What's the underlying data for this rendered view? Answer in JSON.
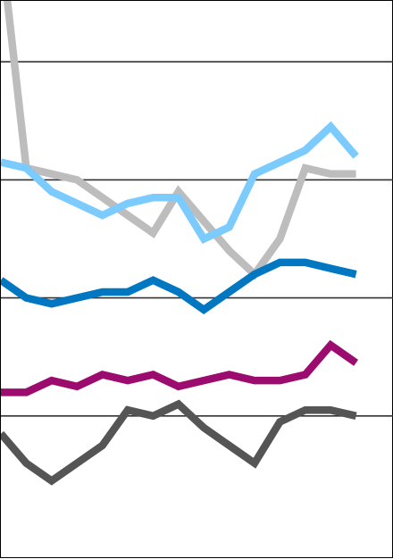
{
  "chart_data": {
    "type": "line",
    "x": [
      1,
      2,
      3,
      4,
      5,
      6,
      7,
      8,
      9,
      10,
      11,
      12,
      13,
      14,
      15
    ],
    "ylim": [
      0,
      100
    ],
    "gridlines_y": [
      20,
      40,
      60,
      80
    ],
    "grid": true,
    "legend": "none",
    "series": [
      {
        "color": "#bdbdbd",
        "values": [
          100,
          62,
          61,
          60,
          57,
          54,
          51,
          58,
          53,
          48,
          44,
          50,
          62,
          61,
          61
        ]
      },
      {
        "color": "#7ccbff",
        "values": [
          63,
          62,
          58,
          56,
          54,
          56,
          57,
          57,
          50,
          52,
          61,
          63,
          65,
          69,
          64
        ]
      },
      {
        "color": "#0077c0",
        "values": [
          43,
          40,
          39,
          40,
          41,
          41,
          43,
          41,
          38,
          41,
          44,
          46,
          46,
          45,
          44
        ]
      },
      {
        "color": "#9b0c6e",
        "values": [
          24,
          24,
          26,
          25,
          27,
          26,
          27,
          25,
          26,
          27,
          26,
          26,
          27,
          32,
          29
        ]
      },
      {
        "color": "#555555",
        "values": [
          17,
          12,
          9,
          12,
          15,
          21,
          20,
          22,
          18,
          15,
          12,
          19,
          21,
          21,
          20
        ]
      }
    ]
  }
}
